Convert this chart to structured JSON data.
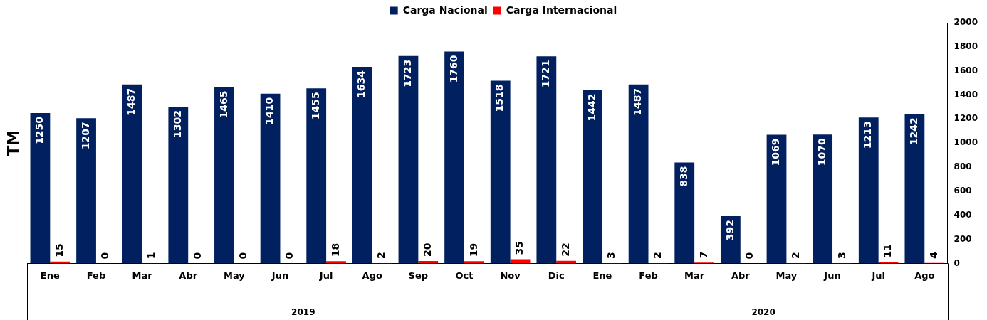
{
  "chart_data": {
    "type": "bar",
    "ylabel": "TM",
    "categories": [
      "Ene",
      "Feb",
      "Mar",
      "Abr",
      "May",
      "Jun",
      "Jul",
      "Ago",
      "Sep",
      "Oct",
      "Nov",
      "Dic",
      "Ene",
      "Feb",
      "Mar",
      "Abr",
      "May",
      "Jun",
      "Jul",
      "Ago"
    ],
    "series": [
      {
        "name": "Carga Nacional",
        "color": "#002060",
        "values": [
          1250,
          1207,
          1487,
          1302,
          1465,
          1410,
          1455,
          1634,
          1723,
          1760,
          1518,
          1721,
          1442,
          1487,
          838,
          392,
          1069,
          1070,
          1213,
          1242
        ]
      },
      {
        "name": "Carga Internacional",
        "color": "#ff0000",
        "values": [
          15,
          0,
          1,
          0,
          0,
          0,
          18,
          2,
          20,
          19,
          35,
          22,
          3,
          2,
          7,
          0,
          2,
          3,
          11,
          4
        ]
      }
    ],
    "annotations": [
      "2019",
      "2020"
    ],
    "ylim": [
      0,
      2000
    ],
    "yticks": [
      0,
      200,
      400,
      600,
      800,
      1000,
      1200,
      1400,
      1600,
      1800,
      2000
    ],
    "grid": false,
    "legend": "top",
    "data_labels": true
  }
}
